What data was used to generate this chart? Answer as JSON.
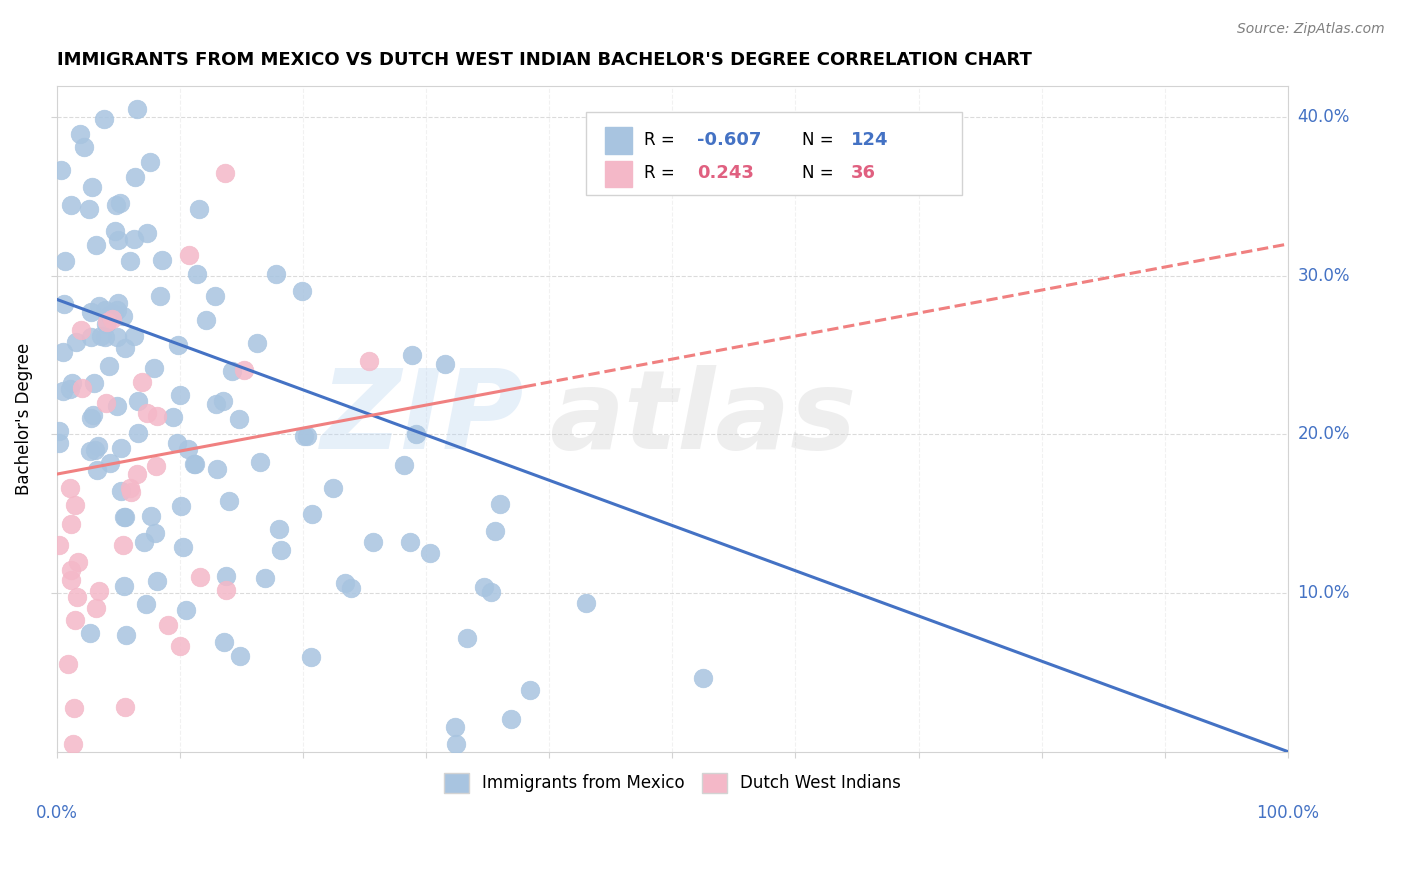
{
  "title": "IMMIGRANTS FROM MEXICO VS DUTCH WEST INDIAN BACHELOR'S DEGREE CORRELATION CHART",
  "source": "Source: ZipAtlas.com",
  "ylabel": "Bachelor's Degree",
  "legend_label1": "Immigrants from Mexico",
  "legend_label2": "Dutch West Indians",
  "R1": "-0.607",
  "N1": "124",
  "R2": "0.243",
  "N2": "36",
  "color_blue": "#a8c4e0",
  "color_pink": "#f4b8c8",
  "line_blue": "#4472c4",
  "line_pink": "#f08080",
  "text_blue": "#4472c4",
  "text_pink": "#e06080"
}
